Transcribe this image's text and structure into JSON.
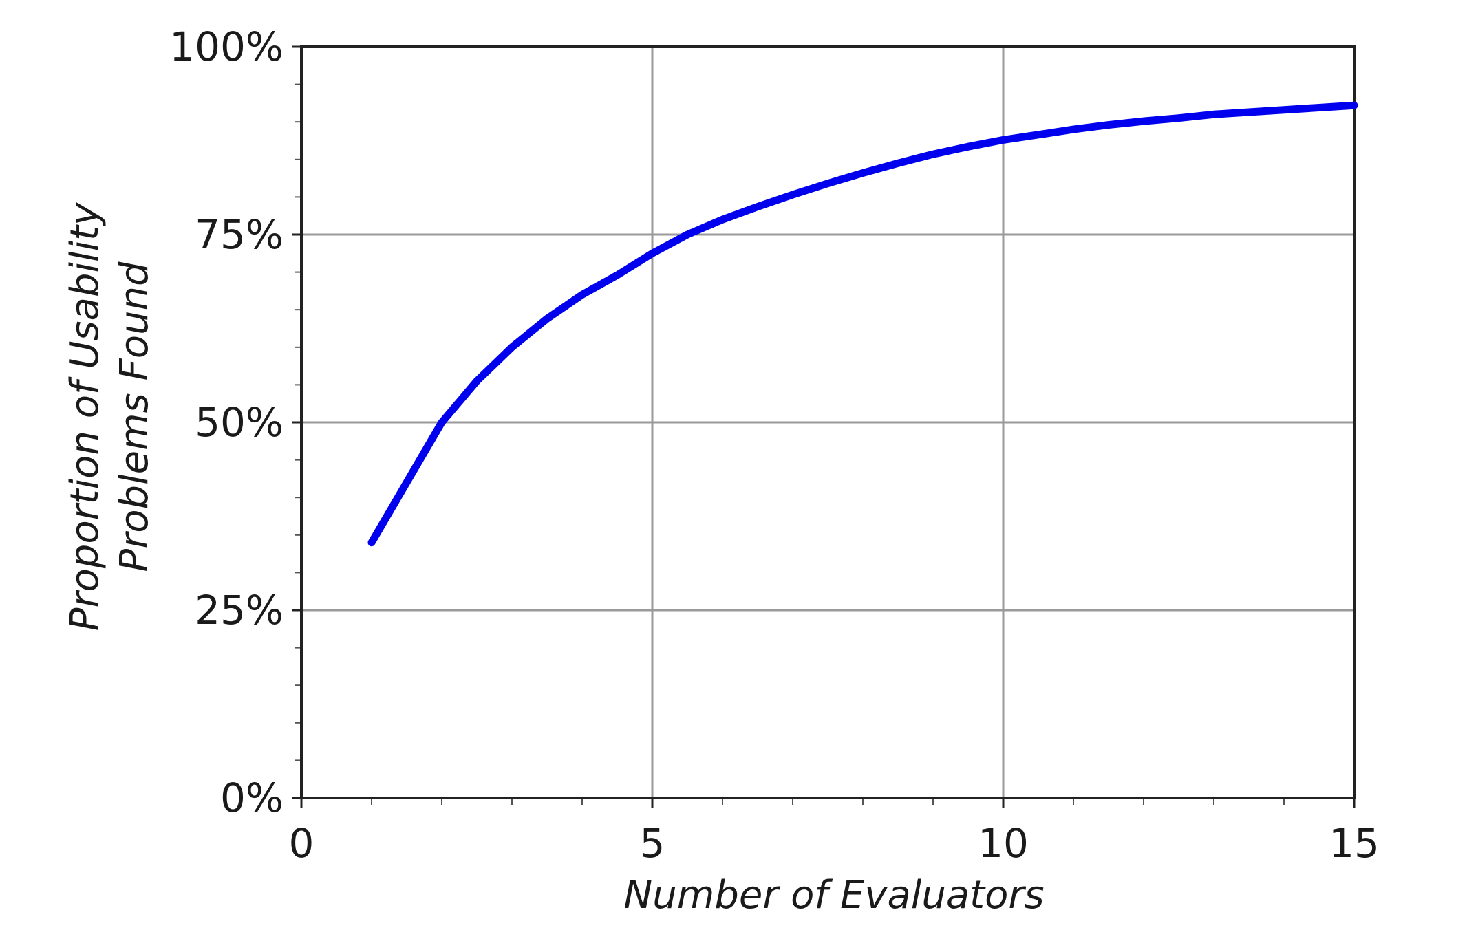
{
  "chart_data": {
    "type": "line",
    "title": "",
    "xlabel": "Number of Evaluators",
    "ylabel_lines": [
      "Proportion of Usability",
      "Problems Found"
    ],
    "xlim": [
      0,
      15
    ],
    "ylim": [
      0,
      100
    ],
    "x_ticks": [
      0,
      5,
      10,
      15
    ],
    "x_tick_labels": [
      "0",
      "5",
      "10",
      "15"
    ],
    "y_ticks": [
      0,
      25,
      50,
      75,
      100
    ],
    "y_tick_labels": [
      "0%",
      "25%",
      "50%",
      "75%",
      "100%"
    ],
    "x_minor_step": 1,
    "y_minor_step": 5,
    "grid": true,
    "line_color": "#0000ee",
    "series": [
      {
        "x": [
          1,
          1.5,
          2,
          2.5,
          3,
          3.5,
          4,
          4.5,
          5,
          5.5,
          6,
          6.5,
          7,
          7.5,
          8,
          8.5,
          9,
          9.5,
          10,
          10.5,
          11,
          11.5,
          12,
          12.5,
          13,
          13.5,
          14,
          14.5,
          15
        ],
        "y": [
          34,
          42,
          50,
          55.5,
          60,
          63.8,
          67,
          69.6,
          72.5,
          75,
          77,
          78.7,
          80.3,
          81.8,
          83.2,
          84.5,
          85.7,
          86.7,
          87.6,
          88.3,
          89,
          89.6,
          90.1,
          90.5,
          91,
          91.3,
          91.6,
          91.9,
          92.2
        ]
      }
    ]
  }
}
